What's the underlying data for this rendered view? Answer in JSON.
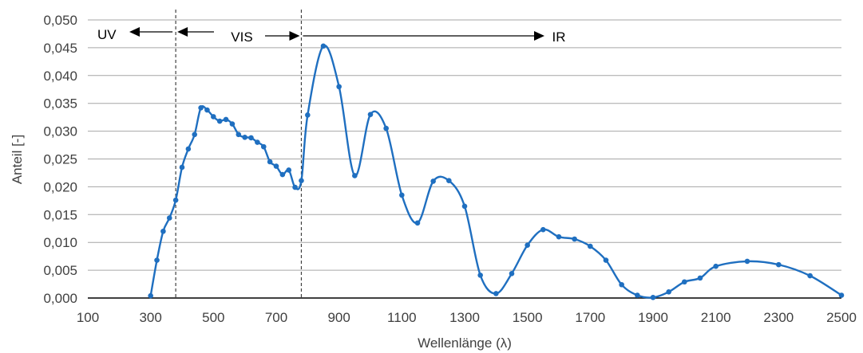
{
  "chart_data": {
    "type": "line",
    "xlabel": "Wellenlänge (λ)",
    "ylabel": "Anteil [-]",
    "xlim": [
      100,
      2500
    ],
    "ylim": [
      0,
      0.05
    ],
    "x_ticks": [
      "100",
      "300",
      "500",
      "700",
      "900",
      "1100",
      "1300",
      "1500",
      "1700",
      "1900",
      "2100",
      "2300",
      "2500"
    ],
    "y_ticks": [
      "0,000",
      "0,005",
      "0,010",
      "0,015",
      "0,020",
      "0,025",
      "0,030",
      "0,035",
      "0,040",
      "0,045",
      "0,050"
    ],
    "grid": "horizontal",
    "color": "#1f6fc0",
    "region_boundaries": [
      380,
      780
    ],
    "region_labels": {
      "uv": "UV",
      "vis": "VIS",
      "ir": "IR"
    },
    "series": [
      {
        "x": [
          300,
          320,
          340,
          360,
          380,
          400,
          420,
          440,
          460,
          480,
          500,
          520,
          540,
          560,
          580,
          600,
          620,
          640,
          660,
          680,
          700,
          720,
          740,
          760,
          780,
          800,
          850,
          900,
          950,
          1000,
          1050,
          1100,
          1150,
          1200,
          1250,
          1300,
          1350,
          1400,
          1450,
          1500,
          1550,
          1600,
          1650,
          1700,
          1750,
          1800,
          1850,
          1900,
          1950,
          2000,
          2050,
          2100,
          2200,
          2300,
          2400,
          2500
        ],
        "y": [
          0.0004,
          0.0068,
          0.012,
          0.0144,
          0.0176,
          0.0235,
          0.0268,
          0.0294,
          0.0342,
          0.0338,
          0.0326,
          0.0318,
          0.0321,
          0.0313,
          0.0294,
          0.0289,
          0.0288,
          0.028,
          0.0272,
          0.0245,
          0.0237,
          0.0222,
          0.023,
          0.0199,
          0.0211,
          0.0329,
          0.0453,
          0.038,
          0.022,
          0.033,
          0.0305,
          0.0185,
          0.0135,
          0.021,
          0.0211,
          0.0165,
          0.0041,
          0.0008,
          0.0044,
          0.0095,
          0.0123,
          0.011,
          0.0106,
          0.0093,
          0.0068,
          0.0024,
          0.0005,
          0.0001,
          0.0011,
          0.0029,
          0.0036,
          0.0057,
          0.0066,
          0.006,
          0.004,
          0.0005
        ]
      }
    ]
  }
}
